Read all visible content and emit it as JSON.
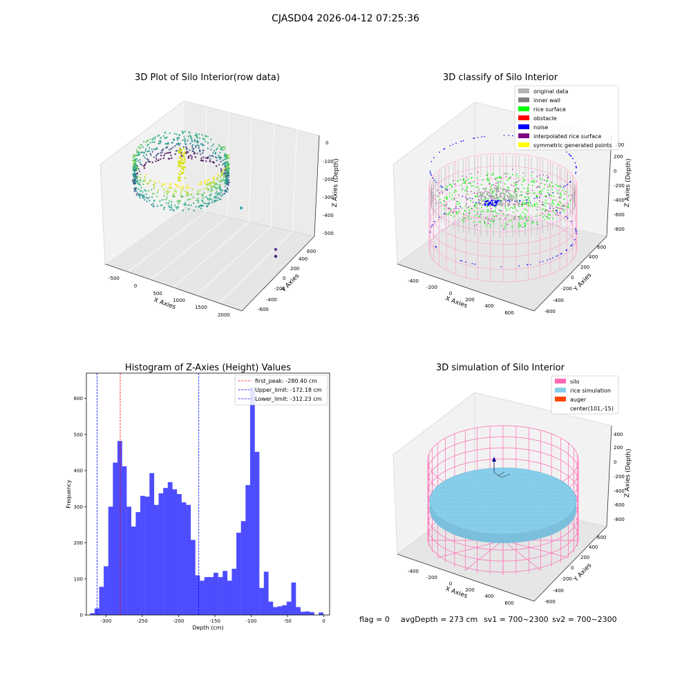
{
  "suptitle": "CJASD04 2026-04-12 07:25:36",
  "status": {
    "flag": "flag = 0",
    "avg": "avgDepth = 273 cm",
    "sv1": "sv1 = 700~2300",
    "sv2": "sv2 = 700~2300"
  },
  "chart_data": [
    {
      "type": "scatter",
      "projection": "3d",
      "title": "3D Plot of Silo Interior(row data)",
      "xlabel": "X Axies",
      "ylabel": "Y Axies",
      "zlabel": "Z Axies (Depth)",
      "x_ticks": [
        "-500",
        "0",
        "500",
        "1000",
        "1500",
        "2000"
      ],
      "y_ticks": [
        "-600",
        "-400",
        "-200",
        "0",
        "200",
        "400",
        "600"
      ],
      "z_ticks": [
        "0",
        "-100",
        "-200",
        "-300",
        "-400",
        "-500"
      ],
      "colormap": "viridis",
      "outlier_points": [
        {
          "x": 2000,
          "y": -550,
          "z": -350
        },
        {
          "x": 2000,
          "y": -600,
          "z": -300
        },
        {
          "x": 1900,
          "y": 0,
          "z": -390
        }
      ]
    },
    {
      "type": "scatter",
      "projection": "3d",
      "title": "3D classify of Silo Interior",
      "xlabel": "X Axies",
      "ylabel": "Y Axies",
      "zlabel": "Z Axies (Depth)",
      "x_ticks": [
        "-400",
        "-200",
        "0",
        "200",
        "400",
        "600"
      ],
      "y_ticks": [
        "-600",
        "-400",
        "-200",
        "0",
        "200",
        "400",
        "600"
      ],
      "z_ticks": [
        "200",
        "0",
        "-200",
        "-400",
        "-600",
        "-800"
      ],
      "legend_placement": "upper right",
      "legend": [
        {
          "label": "original data",
          "color": "#b3b3b3"
        },
        {
          "label": "inner wall",
          "color": "#808080"
        },
        {
          "label": "rice surface",
          "color": "#00ff00"
        },
        {
          "label": "obstacle",
          "color": "#ff0000"
        },
        {
          "label": "noise",
          "color": "#0000ff"
        },
        {
          "label": "interpolated rice surface",
          "color": "#800080"
        },
        {
          "label": "symmetric generated points",
          "color": "#ffff00"
        }
      ]
    },
    {
      "type": "bar",
      "title": "Histogram of Z-Axies (Height) Values",
      "xlabel": "Depth (cm)",
      "ylabel": "Frequency",
      "xlim": [
        -327,
        8
      ],
      "ylim": [
        0,
        670
      ],
      "bar_color": "#4d4dff",
      "x_ticks": [
        -300,
        -250,
        -200,
        -150,
        -100,
        -50,
        0
      ],
      "y_ticks": [
        0,
        100,
        200,
        300,
        400,
        500,
        600
      ],
      "bin_start": -322,
      "bin_width": 6.3,
      "values": [
        5,
        18,
        78,
        135,
        300,
        422,
        482,
        412,
        300,
        245,
        285,
        330,
        328,
        393,
        305,
        337,
        352,
        368,
        348,
        335,
        312,
        305,
        208,
        110,
        95,
        105,
        105,
        117,
        105,
        122,
        95,
        128,
        228,
        260,
        360,
        630,
        452,
        75,
        120,
        37,
        22,
        24,
        27,
        37,
        90,
        22,
        9,
        10,
        8,
        0,
        7
      ],
      "vlines": [
        {
          "x": -280.4,
          "color": "#ff0000",
          "label": "first_peak: -280.40 cm"
        },
        {
          "x": -172.18,
          "color": "#0000ff",
          "label": "Upper_limit: -172.18 cm"
        },
        {
          "x": -312.23,
          "color": "#0000ff",
          "label": "Lower_limit: -312.23 cm"
        }
      ],
      "legend_placement": "upper right"
    },
    {
      "type": "scatter",
      "projection": "3d",
      "title": "3D simulation of Silo Interior",
      "xlabel": "X Axies",
      "ylabel": "Y Axies",
      "zlabel": "Z Axies (Depth)",
      "x_ticks": [
        "-400",
        "-200",
        "0",
        "200",
        "400",
        "600"
      ],
      "y_ticks": [
        "-600",
        "-400",
        "-200",
        "0",
        "200",
        "400",
        "600"
      ],
      "z_ticks": [
        "400",
        "200",
        "0",
        "-200",
        "-400",
        "-600",
        "-800"
      ],
      "legend_placement": "upper right",
      "legend": [
        {
          "label": "silo",
          "color": "#ff69b4"
        },
        {
          "label": "rice simulation",
          "color": "#87ceeb"
        },
        {
          "label": "auger",
          "color": "#ff4500"
        },
        {
          "label": "center(101,-15)",
          "color": "#ffffff"
        }
      ]
    }
  ]
}
